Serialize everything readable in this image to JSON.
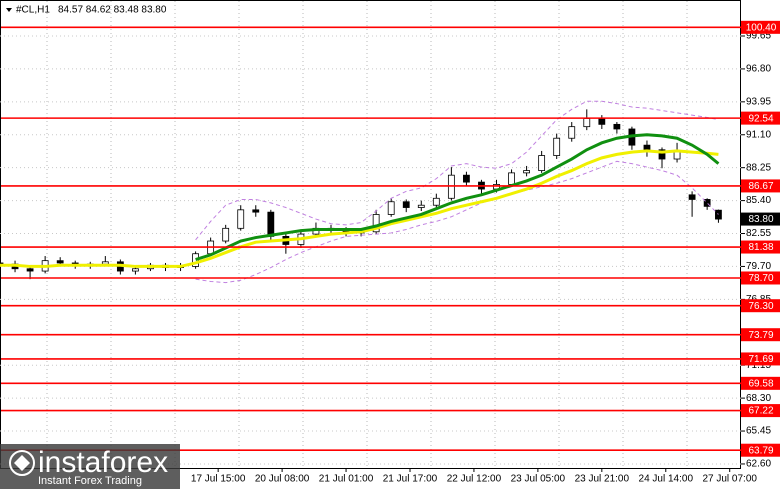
{
  "chart_data": {
    "type": "candlestick",
    "symbol": "#CL,H1",
    "ohlc_text": "84.57 84.62 83.48 83.80",
    "x": [
      0,
      4,
      8,
      12,
      16,
      20,
      24,
      28,
      32,
      36,
      40,
      44,
      48,
      52,
      56,
      60,
      64,
      68,
      72,
      76,
      80,
      84,
      88,
      92,
      96,
      100,
      104,
      108,
      112,
      116,
      120,
      124,
      128,
      132,
      136,
      140,
      144,
      148,
      152,
      156,
      160,
      164,
      168,
      172,
      176,
      180,
      184,
      188,
      191
    ],
    "open": [
      80.0,
      79.9,
      79.5,
      79.3,
      80.2,
      80.0,
      79.8,
      79.9,
      80.1,
      79.3,
      79.5,
      79.8,
      79.6,
      79.7,
      80.8,
      81.9,
      83.0,
      84.6,
      84.4,
      82.3,
      81.6,
      82.5,
      83.0,
      82.9,
      82.6,
      82.7,
      84.2,
      85.3,
      84.8,
      85.0,
      85.6,
      87.6,
      87.0,
      86.4,
      86.8,
      87.8,
      88.0,
      89.3,
      90.8,
      91.8,
      92.5,
      92.0,
      91.6,
      90.2,
      89.8,
      89.0,
      85.9,
      85.5,
      84.57
    ],
    "high": [
      80.4,
      80.2,
      79.7,
      80.6,
      80.5,
      80.2,
      80.1,
      80.6,
      80.3,
      79.8,
      80.0,
      80.0,
      80.0,
      81.0,
      82.2,
      83.3,
      85.0,
      85.0,
      84.6,
      82.6,
      82.9,
      83.5,
      83.3,
      83.1,
      83.0,
      84.6,
      85.6,
      85.5,
      85.4,
      86.0,
      88.3,
      87.9,
      87.2,
      87.2,
      88.1,
      88.4,
      89.7,
      91.2,
      92.2,
      93.3,
      92.8,
      92.2,
      91.8,
      90.6,
      90.0,
      90.4,
      86.2,
      85.6,
      84.62
    ],
    "low": [
      79.6,
      79.2,
      78.6,
      79.1,
      79.8,
      79.5,
      79.5,
      79.7,
      79.0,
      79.0,
      79.3,
      79.3,
      79.3,
      79.5,
      80.6,
      81.7,
      82.8,
      84.0,
      81.9,
      80.8,
      81.3,
      82.2,
      82.5,
      82.3,
      82.3,
      82.5,
      84.0,
      84.4,
      84.5,
      84.8,
      85.4,
      86.7,
      86.0,
      86.1,
      86.6,
      87.5,
      87.8,
      89.0,
      90.5,
      91.5,
      91.6,
      91.2,
      89.8,
      89.2,
      88.2,
      88.7,
      84.0,
      84.6,
      83.48
    ],
    "close": [
      79.9,
      79.5,
      79.3,
      80.2,
      80.0,
      79.8,
      79.9,
      80.1,
      79.3,
      79.5,
      79.8,
      79.6,
      79.7,
      80.8,
      81.9,
      83.0,
      84.6,
      84.4,
      82.3,
      81.6,
      82.5,
      83.0,
      82.9,
      82.6,
      82.7,
      84.2,
      85.3,
      84.8,
      85.0,
      85.6,
      87.6,
      87.0,
      86.4,
      86.8,
      87.8,
      88.0,
      89.3,
      90.8,
      91.8,
      92.5,
      92.0,
      91.6,
      90.2,
      89.8,
      89.0,
      89.6,
      85.5,
      84.9,
      83.8
    ],
    "lines": [
      {
        "color": "#c080e0",
        "style": "dashed",
        "values": [
          null,
          null,
          null,
          null,
          null,
          null,
          null,
          null,
          null,
          null,
          null,
          null,
          null,
          82.0,
          83.6,
          85.0,
          85.5,
          85.5,
          85.2,
          84.8,
          84.3,
          83.8,
          83.4,
          83.3,
          83.5,
          84.5,
          85.6,
          86.2,
          86.5,
          87.3,
          88.4,
          88.6,
          88.3,
          88.2,
          88.6,
          89.6,
          91.0,
          92.4,
          93.3,
          94.0,
          94.0,
          93.8,
          93.5,
          93.4,
          93.2,
          93.0,
          92.8,
          92.6,
          92.4
        ]
      },
      {
        "color": "#c080e0",
        "style": "dashed",
        "values": [
          null,
          null,
          null,
          null,
          null,
          null,
          null,
          null,
          null,
          null,
          null,
          null,
          null,
          78.6,
          78.4,
          78.3,
          78.5,
          79.0,
          79.6,
          80.3,
          80.9,
          81.4,
          81.9,
          82.3,
          82.4,
          82.5,
          82.6,
          82.9,
          83.3,
          83.6,
          84.0,
          84.6,
          85.2,
          85.6,
          86.0,
          86.3,
          86.6,
          86.9,
          87.3,
          87.8,
          88.3,
          88.8,
          88.6,
          88.3,
          88.0,
          87.6,
          86.5,
          85.2,
          84.2
        ]
      },
      {
        "color": "#f0f000",
        "style": "solid",
        "values": [
          79.8,
          79.8,
          79.7,
          79.7,
          79.8,
          79.8,
          79.8,
          79.8,
          79.8,
          79.7,
          79.7,
          79.7,
          79.7,
          80.0,
          80.4,
          80.9,
          81.4,
          81.8,
          81.9,
          82.0,
          82.1,
          82.3,
          82.5,
          82.6,
          82.7,
          83.0,
          83.4,
          83.7,
          84.0,
          84.3,
          84.7,
          85.0,
          85.3,
          85.6,
          86.0,
          86.4,
          86.9,
          87.5,
          88.0,
          88.6,
          89.1,
          89.4,
          89.6,
          89.7,
          89.6,
          89.7,
          89.6,
          89.5,
          89.4
        ]
      },
      {
        "color": "#109010",
        "style": "solid",
        "values": [
          null,
          null,
          null,
          null,
          null,
          null,
          null,
          null,
          null,
          null,
          null,
          null,
          null,
          80.3,
          80.7,
          81.3,
          81.9,
          82.2,
          82.4,
          82.6,
          82.8,
          82.9,
          82.9,
          82.9,
          82.9,
          83.2,
          83.6,
          83.9,
          84.2,
          84.7,
          85.2,
          85.6,
          85.9,
          86.3,
          86.7,
          87.1,
          87.6,
          88.3,
          89.0,
          89.8,
          90.4,
          90.8,
          91.0,
          91.1,
          91.0,
          90.8,
          90.2,
          89.4,
          88.6
        ]
      }
    ],
    "levels_color": "#ff0000",
    "levels": [
      {
        "value": 100.4,
        "label": "100.40"
      },
      92.54,
      86.67,
      81.38,
      {
        "value": 78.7,
        "label": "78.70"
      },
      {
        "value": 76.3,
        "label": "76.30"
      },
      73.79,
      71.69,
      69.58,
      67.22,
      63.79
    ],
    "last_price": {
      "value": 83.8,
      "label": "83.80"
    },
    "xlim": [
      0,
      197
    ],
    "ylim": [
      62.25,
      102.42
    ],
    "yticks": [
      99.65,
      {
        "value": 96.8,
        "label": "96.80"
      },
      93.95,
      {
        "value": 91.1,
        "label": "91.10"
      },
      88.25,
      {
        "value": 85.4,
        "label": "85.40"
      },
      82.55,
      {
        "value": 79.7,
        "label": "79.70"
      },
      76.85,
      71.15,
      {
        "value": 68.3,
        "label": "68.30"
      },
      65.45,
      {
        "value": 62.6,
        "label": "62.60"
      }
    ],
    "xticks": [
      {
        "value": 58,
        "label": "17 Jul 15:00"
      },
      {
        "value": 75,
        "label": "20 Jul 08:00"
      },
      {
        "value": 92,
        "label": "21 Jul 01:00"
      },
      {
        "value": 109,
        "label": "21 Jul 17:00"
      },
      {
        "value": 126,
        "label": "22 Jul 12:00"
      },
      {
        "value": 143,
        "label": "23 Jul 05:00"
      },
      {
        "value": 160,
        "label": "23 Jul 21:00"
      },
      {
        "value": 177,
        "label": "24 Jul 14:00"
      },
      {
        "value": 194,
        "label": "27 Jul 07:00"
      }
    ],
    "grid": true,
    "watermark": {
      "brand": "instaforex",
      "slogan": "Instant Forex Trading"
    }
  }
}
